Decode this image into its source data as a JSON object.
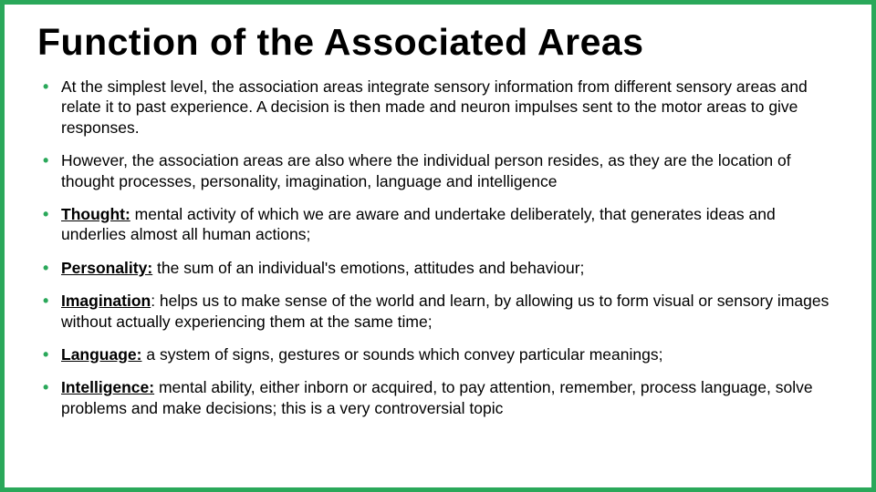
{
  "colors": {
    "border": "#2aa85a",
    "bullet": "#2aa85a",
    "text": "#000000",
    "background": "#ffffff"
  },
  "typography": {
    "title_fontsize": 41,
    "body_fontsize": 17.5,
    "font_family": "Comic Sans MS"
  },
  "title": "Function of the Associated Areas",
  "bullets": [
    {
      "term": "",
      "text": "At the simplest level, the association areas integrate sensory information from different sensory areas and relate it to past experience. A decision is then made and neuron impulses sent to the motor areas to give responses."
    },
    {
      "term": "",
      "text": "However, the association areas are also where the individual person resides, as they are the location of thought processes, personality, imagination, language and intelligence"
    },
    {
      "term": "Thought:",
      "text": " mental activity of which we are aware and undertake deliberately, that generates ideas and underlies almost all human actions;"
    },
    {
      "term": "Personality:",
      "text": " the sum of an individual's emotions, attitudes and behaviour;"
    },
    {
      "term": "Imagination",
      "text": ": helps us to make sense of the world and learn, by allowing us to form visual or sensory images without actually experiencing them at the same time;"
    },
    {
      "term": "Language:",
      "text": " a system of signs, gestures or sounds which convey particular meanings;"
    },
    {
      "term": "Intelligence:",
      "text": " mental ability, either inborn or acquired, to pay attention, remember, process language, solve problems and make decisions; this is a very controversial topic"
    }
  ]
}
